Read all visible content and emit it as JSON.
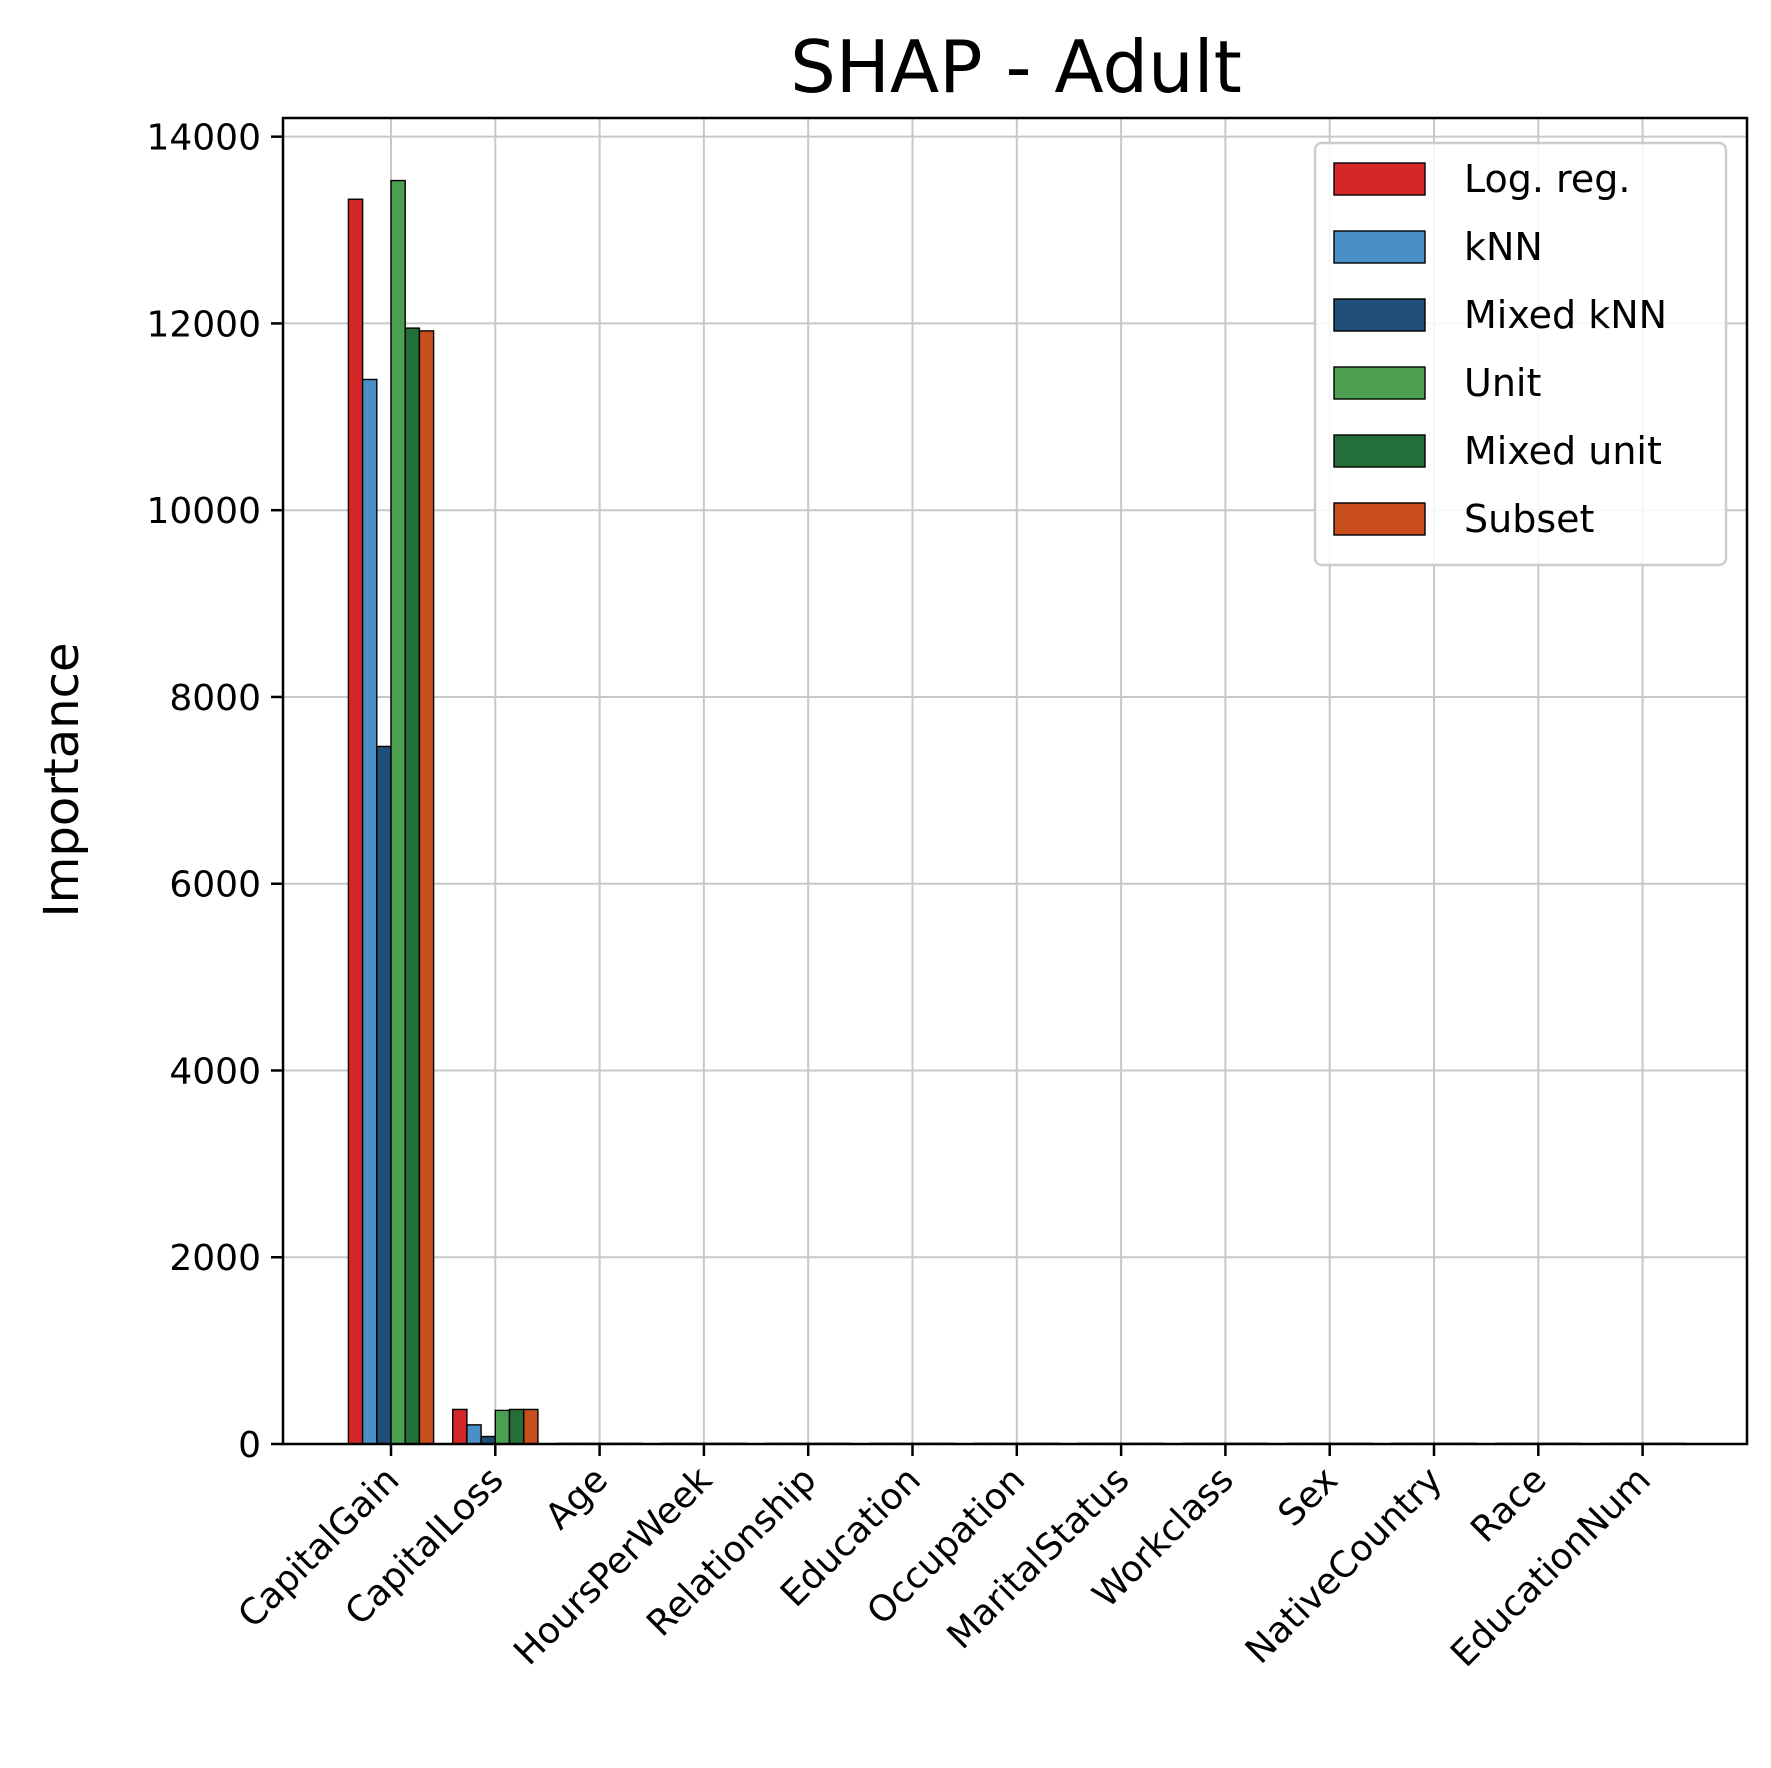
{
  "chart_data": {
    "type": "bar",
    "title": "SHAP - Adult",
    "xlabel": "",
    "ylabel": "Importance",
    "ylim": [
      0,
      14200
    ],
    "yticks": [
      0,
      2000,
      4000,
      6000,
      8000,
      10000,
      12000,
      14000
    ],
    "ytick_labels": [
      "0",
      "2000",
      "4000",
      "6000",
      "8000",
      "10000",
      "12000",
      "14000"
    ],
    "grid": true,
    "legend_position": "top-right",
    "categories": [
      "CapitalGain",
      "CapitalLoss",
      "Age",
      "HoursPerWeek",
      "Relationship",
      "Education",
      "Occupation",
      "MaritalStatus",
      "Workclass",
      "Sex",
      "NativeCountry",
      "Race",
      "EducationNum"
    ],
    "series": [
      {
        "name": "Log. reg.",
        "color": "#d62728",
        "values": [
          13330,
          370,
          5,
          3,
          2,
          2,
          2,
          2,
          1,
          1,
          1,
          1,
          1
        ]
      },
      {
        "name": "kNN",
        "color": "#4a90c6",
        "values": [
          11400,
          205,
          4,
          3,
          2,
          2,
          2,
          2,
          1,
          1,
          1,
          1,
          1
        ]
      },
      {
        "name": "Mixed kNN",
        "color": "#1f4e79",
        "values": [
          7470,
          80,
          3,
          2,
          2,
          1,
          1,
          1,
          1,
          1,
          1,
          1,
          1
        ]
      },
      {
        "name": "Unit",
        "color": "#4c9e50",
        "values": [
          13530,
          360,
          5,
          3,
          2,
          2,
          2,
          2,
          1,
          1,
          1,
          1,
          1
        ]
      },
      {
        "name": "Mixed unit",
        "color": "#246e39",
        "values": [
          11950,
          370,
          5,
          3,
          2,
          2,
          2,
          2,
          1,
          1,
          1,
          1,
          1
        ]
      },
      {
        "name": "Subset",
        "color": "#c84e1e",
        "values": [
          11920,
          370,
          5,
          3,
          2,
          2,
          2,
          2,
          1,
          1,
          1,
          1,
          1
        ]
      }
    ]
  }
}
